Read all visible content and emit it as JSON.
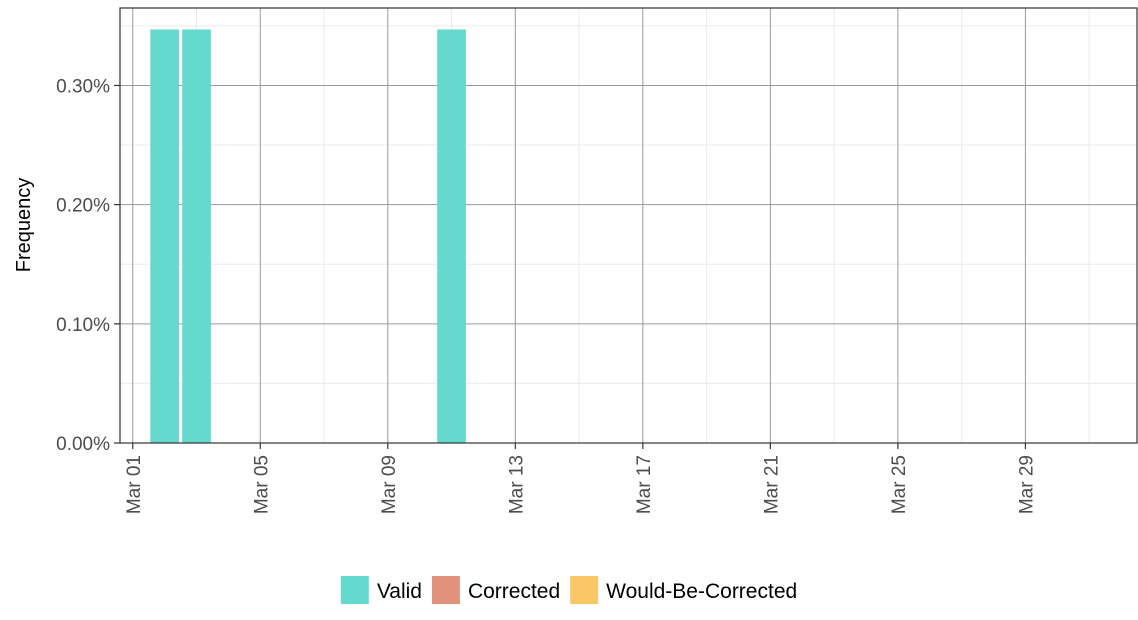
{
  "chart_data": {
    "type": "bar",
    "title": "",
    "xlabel": "",
    "ylabel": "Frequency",
    "x_tick_labels": [
      "Mar 01",
      "Mar 05",
      "Mar 09",
      "Mar 13",
      "Mar 17",
      "Mar 21",
      "Mar 25",
      "Mar 29"
    ],
    "x_tick_days": [
      1,
      5,
      9,
      13,
      17,
      21,
      25,
      29
    ],
    "y_tick_labels": [
      "0.00%",
      "0.10%",
      "0.20%",
      "0.30%"
    ],
    "y_tick_values": [
      0,
      0.1,
      0.2,
      0.3
    ],
    "xlim_days": [
      0.6,
      32.5
    ],
    "ylim": [
      0,
      0.365
    ],
    "grid": true,
    "legend_position": "bottom",
    "series": [
      {
        "name": "Valid",
        "color": "#66d9cf",
        "points": [
          {
            "x": "Mar 02",
            "day": 2,
            "value": 0.347
          },
          {
            "x": "Mar 03",
            "day": 3,
            "value": 0.347
          },
          {
            "x": "Mar 11",
            "day": 11,
            "value": 0.347
          }
        ]
      },
      {
        "name": "Corrected",
        "color": "#e0937a",
        "points": []
      },
      {
        "name": "Would-Be-Corrected",
        "color": "#fbc766",
        "points": []
      }
    ]
  }
}
